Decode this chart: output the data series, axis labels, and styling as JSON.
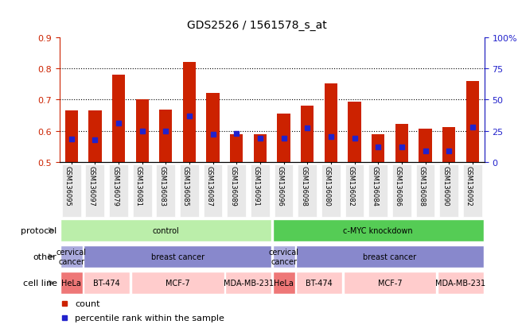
{
  "title": "GDS2526 / 1561578_s_at",
  "samples": [
    "GSM136095",
    "GSM136097",
    "GSM136079",
    "GSM136081",
    "GSM136083",
    "GSM136085",
    "GSM136087",
    "GSM136089",
    "GSM136091",
    "GSM136096",
    "GSM136098",
    "GSM136080",
    "GSM136082",
    "GSM136084",
    "GSM136086",
    "GSM136088",
    "GSM136090",
    "GSM136092"
  ],
  "bar_heights": [
    0.665,
    0.665,
    0.78,
    0.7,
    0.668,
    0.82,
    0.72,
    0.59,
    0.59,
    0.656,
    0.68,
    0.752,
    0.692,
    0.59,
    0.623,
    0.607,
    0.612,
    0.76
  ],
  "percentile_positions": [
    0.573,
    0.572,
    0.625,
    0.598,
    0.598,
    0.648,
    0.59,
    0.592,
    0.575,
    0.577,
    0.608,
    0.58,
    0.577,
    0.548,
    0.548,
    0.535,
    0.535,
    0.612
  ],
  "bar_bottom": 0.5,
  "ylim": [
    0.5,
    0.9
  ],
  "left_yticks": [
    0.5,
    0.6,
    0.7,
    0.8,
    0.9
  ],
  "right_yticks": [
    0,
    25,
    50,
    75,
    100
  ],
  "bar_color": "#cc2200",
  "percentile_color": "#2222cc",
  "protocol_row": {
    "label": "protocol",
    "groups": [
      {
        "text": "control",
        "start": 0,
        "end": 9,
        "color": "#bbeeaa"
      },
      {
        "text": "c-MYC knockdown",
        "start": 9,
        "end": 18,
        "color": "#55cc55"
      }
    ]
  },
  "other_row": {
    "label": "other",
    "groups": [
      {
        "text": "cervical\ncancer",
        "start": 0,
        "end": 1,
        "color": "#aaaadd"
      },
      {
        "text": "breast cancer",
        "start": 1,
        "end": 9,
        "color": "#8888cc"
      },
      {
        "text": "cervical\ncancer",
        "start": 9,
        "end": 10,
        "color": "#aaaadd"
      },
      {
        "text": "breast cancer",
        "start": 10,
        "end": 18,
        "color": "#8888cc"
      }
    ]
  },
  "cellline_row": {
    "label": "cell line",
    "groups": [
      {
        "text": "HeLa",
        "start": 0,
        "end": 1,
        "color": "#ee7777"
      },
      {
        "text": "BT-474",
        "start": 1,
        "end": 3,
        "color": "#ffcccc"
      },
      {
        "text": "MCF-7",
        "start": 3,
        "end": 7,
        "color": "#ffcccc"
      },
      {
        "text": "MDA-MB-231",
        "start": 7,
        "end": 9,
        "color": "#ffcccc"
      },
      {
        "text": "HeLa",
        "start": 9,
        "end": 10,
        "color": "#ee7777"
      },
      {
        "text": "BT-474",
        "start": 10,
        "end": 12,
        "color": "#ffcccc"
      },
      {
        "text": "MCF-7",
        "start": 12,
        "end": 16,
        "color": "#ffcccc"
      },
      {
        "text": "MDA-MB-231",
        "start": 16,
        "end": 18,
        "color": "#ffcccc"
      }
    ]
  },
  "legend_items": [
    {
      "label": "count",
      "color": "#cc2200"
    },
    {
      "label": "percentile rank within the sample",
      "color": "#2222cc"
    }
  ]
}
